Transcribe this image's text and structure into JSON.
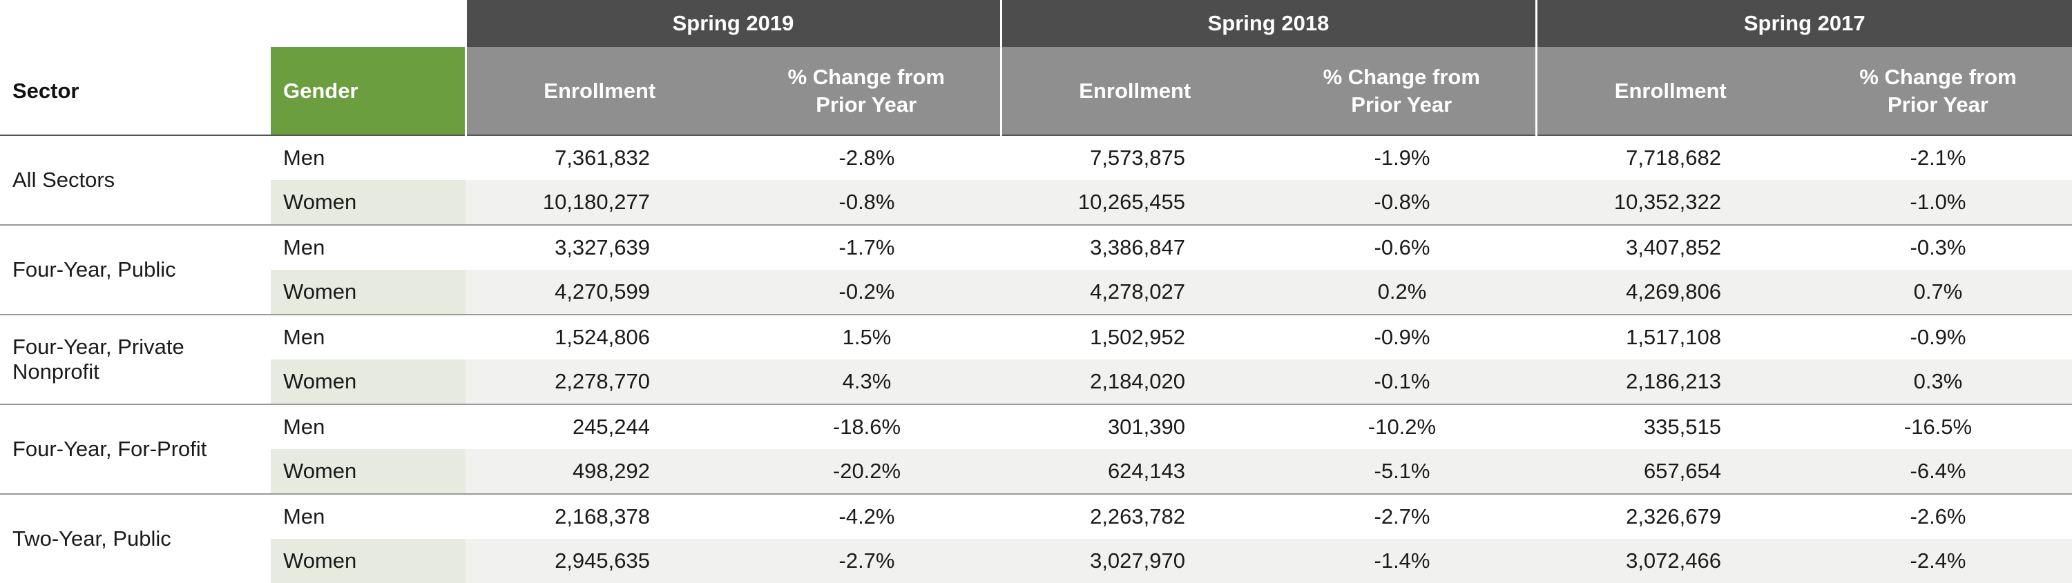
{
  "header": {
    "sector": "Sector",
    "gender": "Gender",
    "groups": [
      {
        "label": "Spring 2019",
        "columns": [
          "Enrollment",
          "% Change from Prior Year"
        ]
      },
      {
        "label": "Spring 2018",
        "columns": [
          "Enrollment",
          "% Change from Prior Year"
        ]
      },
      {
        "label": "Spring 2017",
        "columns": [
          "Enrollment",
          "% Change from Prior Year"
        ]
      }
    ]
  },
  "table": {
    "sectors": [
      {
        "name": "All Sectors",
        "rows": [
          {
            "gender": "Men",
            "cells": [
              "7,361,832",
              "-2.8%",
              "7,573,875",
              "-1.9%",
              "7,718,682",
              "-2.1%"
            ]
          },
          {
            "gender": "Women",
            "cells": [
              "10,180,277",
              "-0.8%",
              "10,265,455",
              "-0.8%",
              "10,352,322",
              "-1.0%"
            ]
          }
        ]
      },
      {
        "name": "Four-Year, Public",
        "rows": [
          {
            "gender": "Men",
            "cells": [
              "3,327,639",
              "-1.7%",
              "3,386,847",
              "-0.6%",
              "3,407,852",
              "-0.3%"
            ]
          },
          {
            "gender": "Women",
            "cells": [
              "4,270,599",
              "-0.2%",
              "4,278,027",
              "0.2%",
              "4,269,806",
              "0.7%"
            ]
          }
        ]
      },
      {
        "name": "Four-Year, Private Nonprofit",
        "rows": [
          {
            "gender": "Men",
            "cells": [
              "1,524,806",
              "1.5%",
              "1,502,952",
              "-0.9%",
              "1,517,108",
              "-0.9%"
            ]
          },
          {
            "gender": "Women",
            "cells": [
              "2,278,770",
              "4.3%",
              "2,184,020",
              "-0.1%",
              "2,186,213",
              "0.3%"
            ]
          }
        ]
      },
      {
        "name": "Four-Year, For-Profit",
        "rows": [
          {
            "gender": "Men",
            "cells": [
              "245,244",
              "-18.6%",
              "301,390",
              "-10.2%",
              "335,515",
              "-16.5%"
            ]
          },
          {
            "gender": "Women",
            "cells": [
              "498,292",
              "-20.2%",
              "624,143",
              "-5.1%",
              "657,654",
              "-6.4%"
            ]
          }
        ]
      },
      {
        "name": "Two-Year, Public",
        "rows": [
          {
            "gender": "Men",
            "cells": [
              "2,168,378",
              "-4.2%",
              "2,263,782",
              "-2.7%",
              "2,326,679",
              "-2.6%"
            ]
          },
          {
            "gender": "Women",
            "cells": [
              "2,945,635",
              "-2.7%",
              "3,027,970",
              "-1.4%",
              "3,072,466",
              "-2.4%"
            ]
          }
        ]
      }
    ]
  }
}
